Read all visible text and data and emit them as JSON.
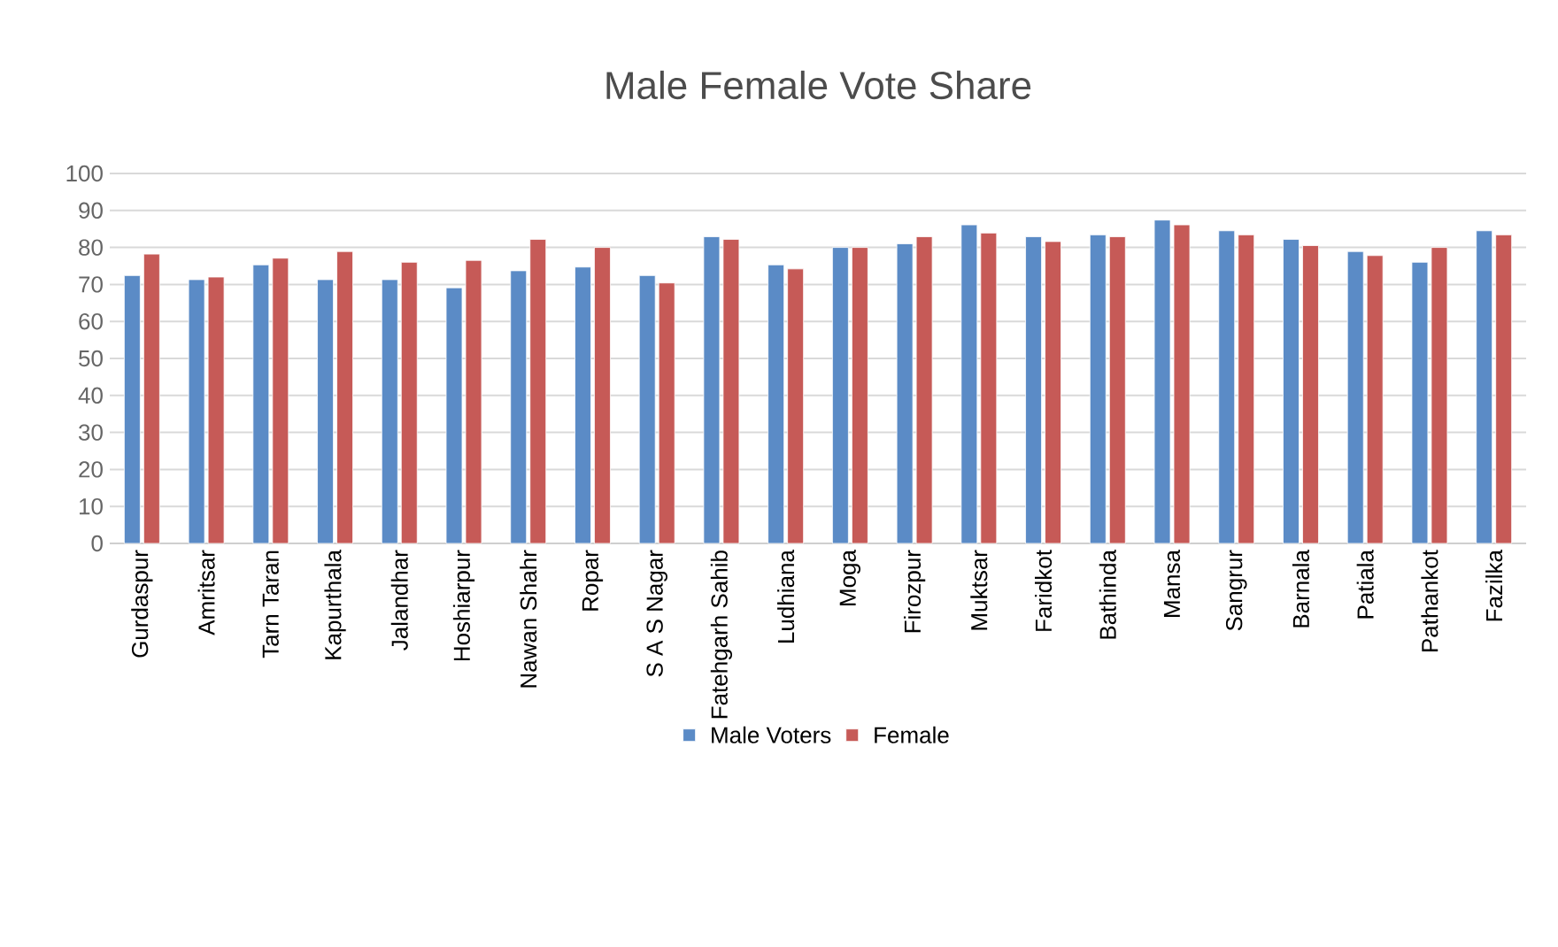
{
  "chart_data": {
    "type": "bar",
    "title": "Male Female Vote Share",
    "categories": [
      "Gurdaspur",
      "Amritsar",
      "Tarn Taran",
      "Kapurthala",
      "Jalandhar",
      "Hoshiarpur",
      "Nawan Shahr",
      "Ropar",
      "S A S Nagar",
      "Fatehgarh Sahib",
      "Ludhiana",
      "Moga",
      "Firozpur",
      "Muktsar",
      "Faridkot",
      "Bathinda",
      "Mansa",
      "Sangrur",
      "Barnala",
      "Patiala",
      "Pathankot",
      "Fazilka"
    ],
    "series": [
      {
        "name": "Male Voters",
        "color": "#5b8bc6",
        "values": [
          72.4,
          71.3,
          75.3,
          71.3,
          71.3,
          69.1,
          73.7,
          74.7,
          72.4,
          82.9,
          75.3,
          80,
          81,
          86.1,
          82.9,
          83.4,
          87.4,
          84.5,
          82.2,
          78.9,
          76,
          84.5
        ]
      },
      {
        "name": "Female",
        "color": "#c65a57",
        "values": [
          78.2,
          72,
          77.1,
          78.9,
          76,
          76.5,
          82.2,
          80,
          70.4,
          82.2,
          74.2,
          80,
          82.9,
          83.9,
          81.6,
          82.9,
          86.1,
          83.4,
          80.5,
          77.8,
          80,
          83.4
        ]
      }
    ],
    "ylim": [
      0,
      100
    ],
    "yticks": [
      0,
      10,
      20,
      30,
      40,
      50,
      60,
      70,
      80,
      90,
      100
    ],
    "grid": "y",
    "legend": "bottom"
  }
}
